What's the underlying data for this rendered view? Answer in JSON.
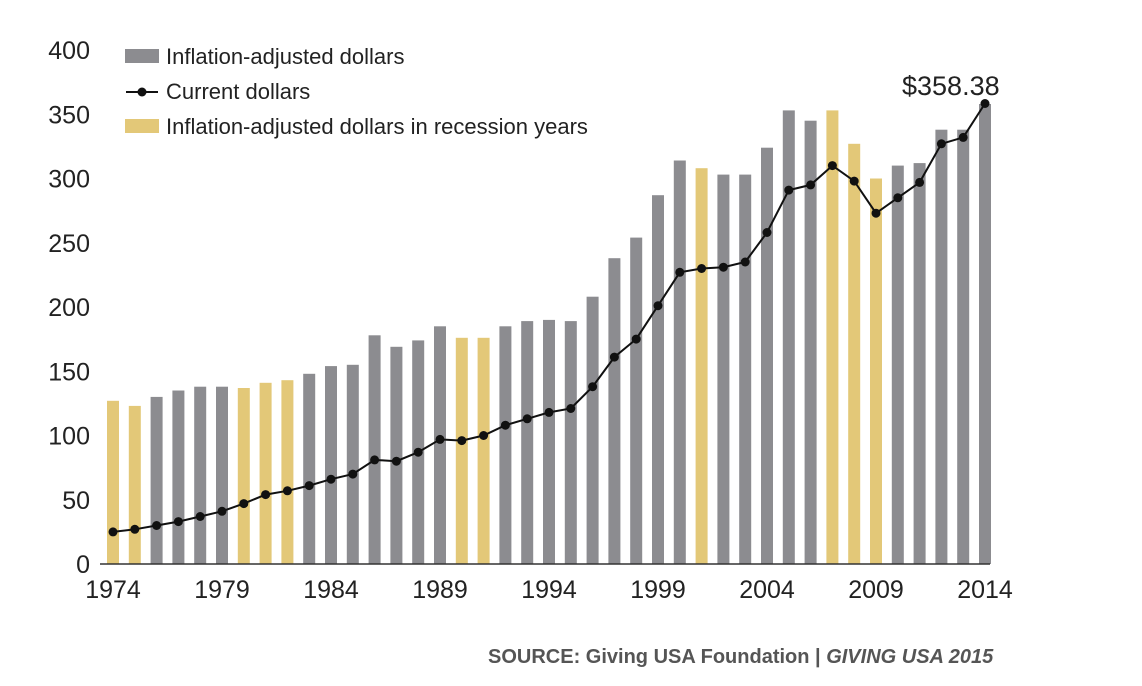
{
  "chart_data": {
    "type": "bar",
    "x": [
      1974,
      1975,
      1976,
      1977,
      1978,
      1979,
      1980,
      1981,
      1982,
      1983,
      1984,
      1985,
      1986,
      1987,
      1988,
      1989,
      1990,
      1991,
      1992,
      1993,
      1994,
      1995,
      1996,
      1997,
      1998,
      1999,
      2000,
      2001,
      2002,
      2003,
      2004,
      2005,
      2006,
      2007,
      2008,
      2009,
      2010,
      2011,
      2012,
      2013,
      2014
    ],
    "x_tick_labels": [
      "1974",
      "1979",
      "1984",
      "1989",
      "1994",
      "1999",
      "2004",
      "2009",
      "2014"
    ],
    "y_tick_labels": [
      "0",
      "50",
      "100",
      "150",
      "200",
      "250",
      "300",
      "350",
      "400"
    ],
    "ylim": [
      0,
      400
    ],
    "recession_years": [
      1974,
      1975,
      1980,
      1981,
      1982,
      1990,
      1991,
      2001,
      2007,
      2008,
      2009
    ],
    "series": [
      {
        "name": "Inflation-adjusted dollars",
        "kind": "bar",
        "color": "#8c8c90",
        "values": [
          127,
          123,
          130,
          135,
          138,
          138,
          137,
          141,
          143,
          148,
          154,
          155,
          178,
          169,
          174,
          185,
          176,
          176,
          185,
          189,
          190,
          189,
          208,
          238,
          254,
          287,
          314,
          308,
          303,
          303,
          324,
          353,
          345,
          353,
          327,
          300,
          310,
          312,
          338,
          338,
          358
        ]
      },
      {
        "name": "Inflation-adjusted dollars in recession years",
        "kind": "bar",
        "color": "#e3c878"
      },
      {
        "name": "Current dollars",
        "kind": "line",
        "color": "#111111",
        "values": [
          25,
          27,
          30,
          33,
          37,
          41,
          47,
          54,
          57,
          61,
          66,
          70,
          81,
          80,
          87,
          97,
          96,
          100,
          108,
          113,
          118,
          121,
          138,
          161,
          175,
          201,
          227,
          230,
          231,
          235,
          258,
          291,
          295,
          310,
          298,
          273,
          285,
          297,
          327,
          332,
          358.38
        ]
      }
    ],
    "annotation": "$358.38",
    "legend_position": "top-left",
    "grid": false
  },
  "source": {
    "prefix": "SOURCE:  ",
    "org": "Giving USA Foundation | ",
    "publication": "GIVING USA 2015"
  }
}
